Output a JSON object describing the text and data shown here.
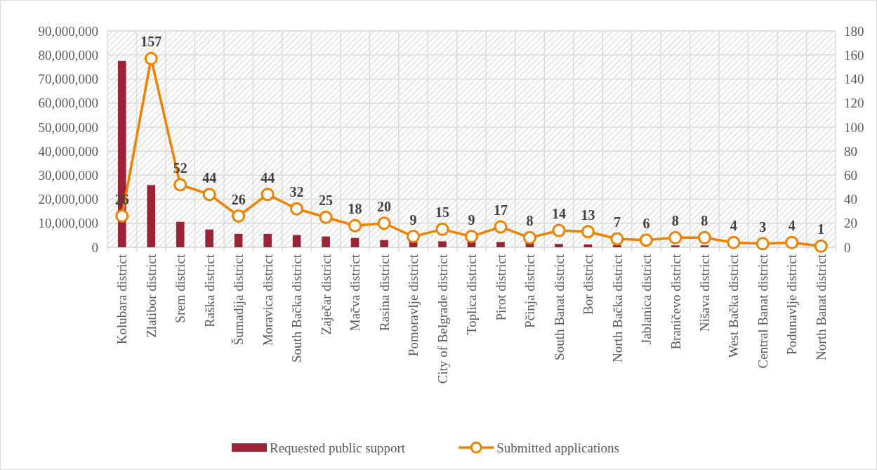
{
  "chart_data": {
    "type": "bar",
    "categories": [
      "Kolubara district",
      "Zlatibor district",
      "Srem district",
      "Raška district",
      "Šumadija district",
      "Moravica district",
      "South Bačka district",
      "Zaječar district",
      "Mačva district",
      "Rasina district",
      "Pomoravlje district",
      "City of Belgrade district",
      "Toplica district",
      "Pirot district",
      "Pčinja district",
      "South Banat district",
      "Bor district",
      "North Bačka district",
      "Jablanica district",
      "Braničevo district",
      "Nišava district",
      "West Bačka district",
      "Central Banat district",
      "Podunavlje district",
      "North Banat district"
    ],
    "series": [
      {
        "name": "Requested public support",
        "color": "#9b2335",
        "values": [
          77500000,
          25900000,
          10600000,
          7400000,
          5600000,
          5600000,
          5100000,
          4500000,
          3900000,
          3000000,
          2600000,
          2500000,
          2400000,
          2200000,
          1900000,
          1400000,
          1200000,
          900000,
          null,
          800000,
          800000,
          300000,
          200000,
          200000,
          null
        ]
      },
      {
        "name": "Submitted applications",
        "type": "line",
        "axis": "y2",
        "color": "#f08000",
        "marker": "circle",
        "data_labels": true,
        "values": [
          26,
          157,
          52,
          44,
          26,
          44,
          32,
          25,
          18,
          20,
          9,
          15,
          9,
          17,
          8,
          14,
          13,
          7,
          6,
          8,
          8,
          4,
          3,
          4,
          1
        ]
      }
    ],
    "ylim": [
      0,
      90000000
    ],
    "yticks": [
      {
        "value": 0,
        "label": "0"
      },
      {
        "value": 10000000,
        "label": "10,000,000"
      },
      {
        "value": 20000000,
        "label": "20,000,000"
      },
      {
        "value": 30000000,
        "label": "30,000,000"
      },
      {
        "value": 40000000,
        "label": "40,000,000"
      },
      {
        "value": 50000000,
        "label": "50,000,000"
      },
      {
        "value": 60000000,
        "label": "60,000,000"
      },
      {
        "value": 70000000,
        "label": "70,000,000"
      },
      {
        "value": 80000000,
        "label": "80,000,000"
      },
      {
        "value": 90000000,
        "label": "90,000,000"
      }
    ],
    "y2lim": [
      0,
      180
    ],
    "y2ticks": [
      0,
      20,
      40,
      60,
      80,
      100,
      120,
      140,
      160,
      180
    ],
    "grid": true,
    "legend": "bottom"
  }
}
